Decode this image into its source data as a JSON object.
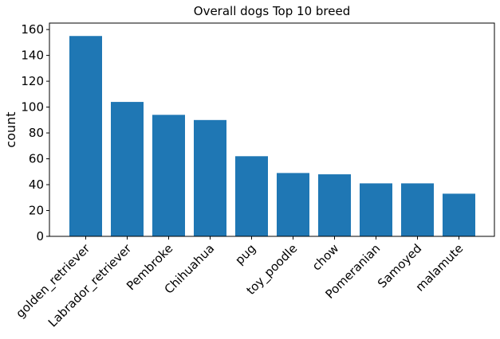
{
  "chart_data": {
    "type": "bar",
    "title": "Overall dogs Top 10 breed",
    "xlabel": "",
    "ylabel": "count",
    "categories": [
      "golden_retriever",
      "Labrador_retriever",
      "Pembroke",
      "Chihuahua",
      "pug",
      "toy_poodle",
      "chow",
      "Pomeranian",
      "Samoyed",
      "malamute"
    ],
    "values": [
      155,
      104,
      94,
      90,
      62,
      49,
      48,
      41,
      41,
      33
    ],
    "ylim": [
      0,
      165
    ],
    "yticks": [
      0,
      20,
      40,
      60,
      80,
      100,
      120,
      140,
      160
    ],
    "x_tick_rotation": 45,
    "grid": false,
    "legend": "none",
    "bar_color": "#1f77b4"
  }
}
